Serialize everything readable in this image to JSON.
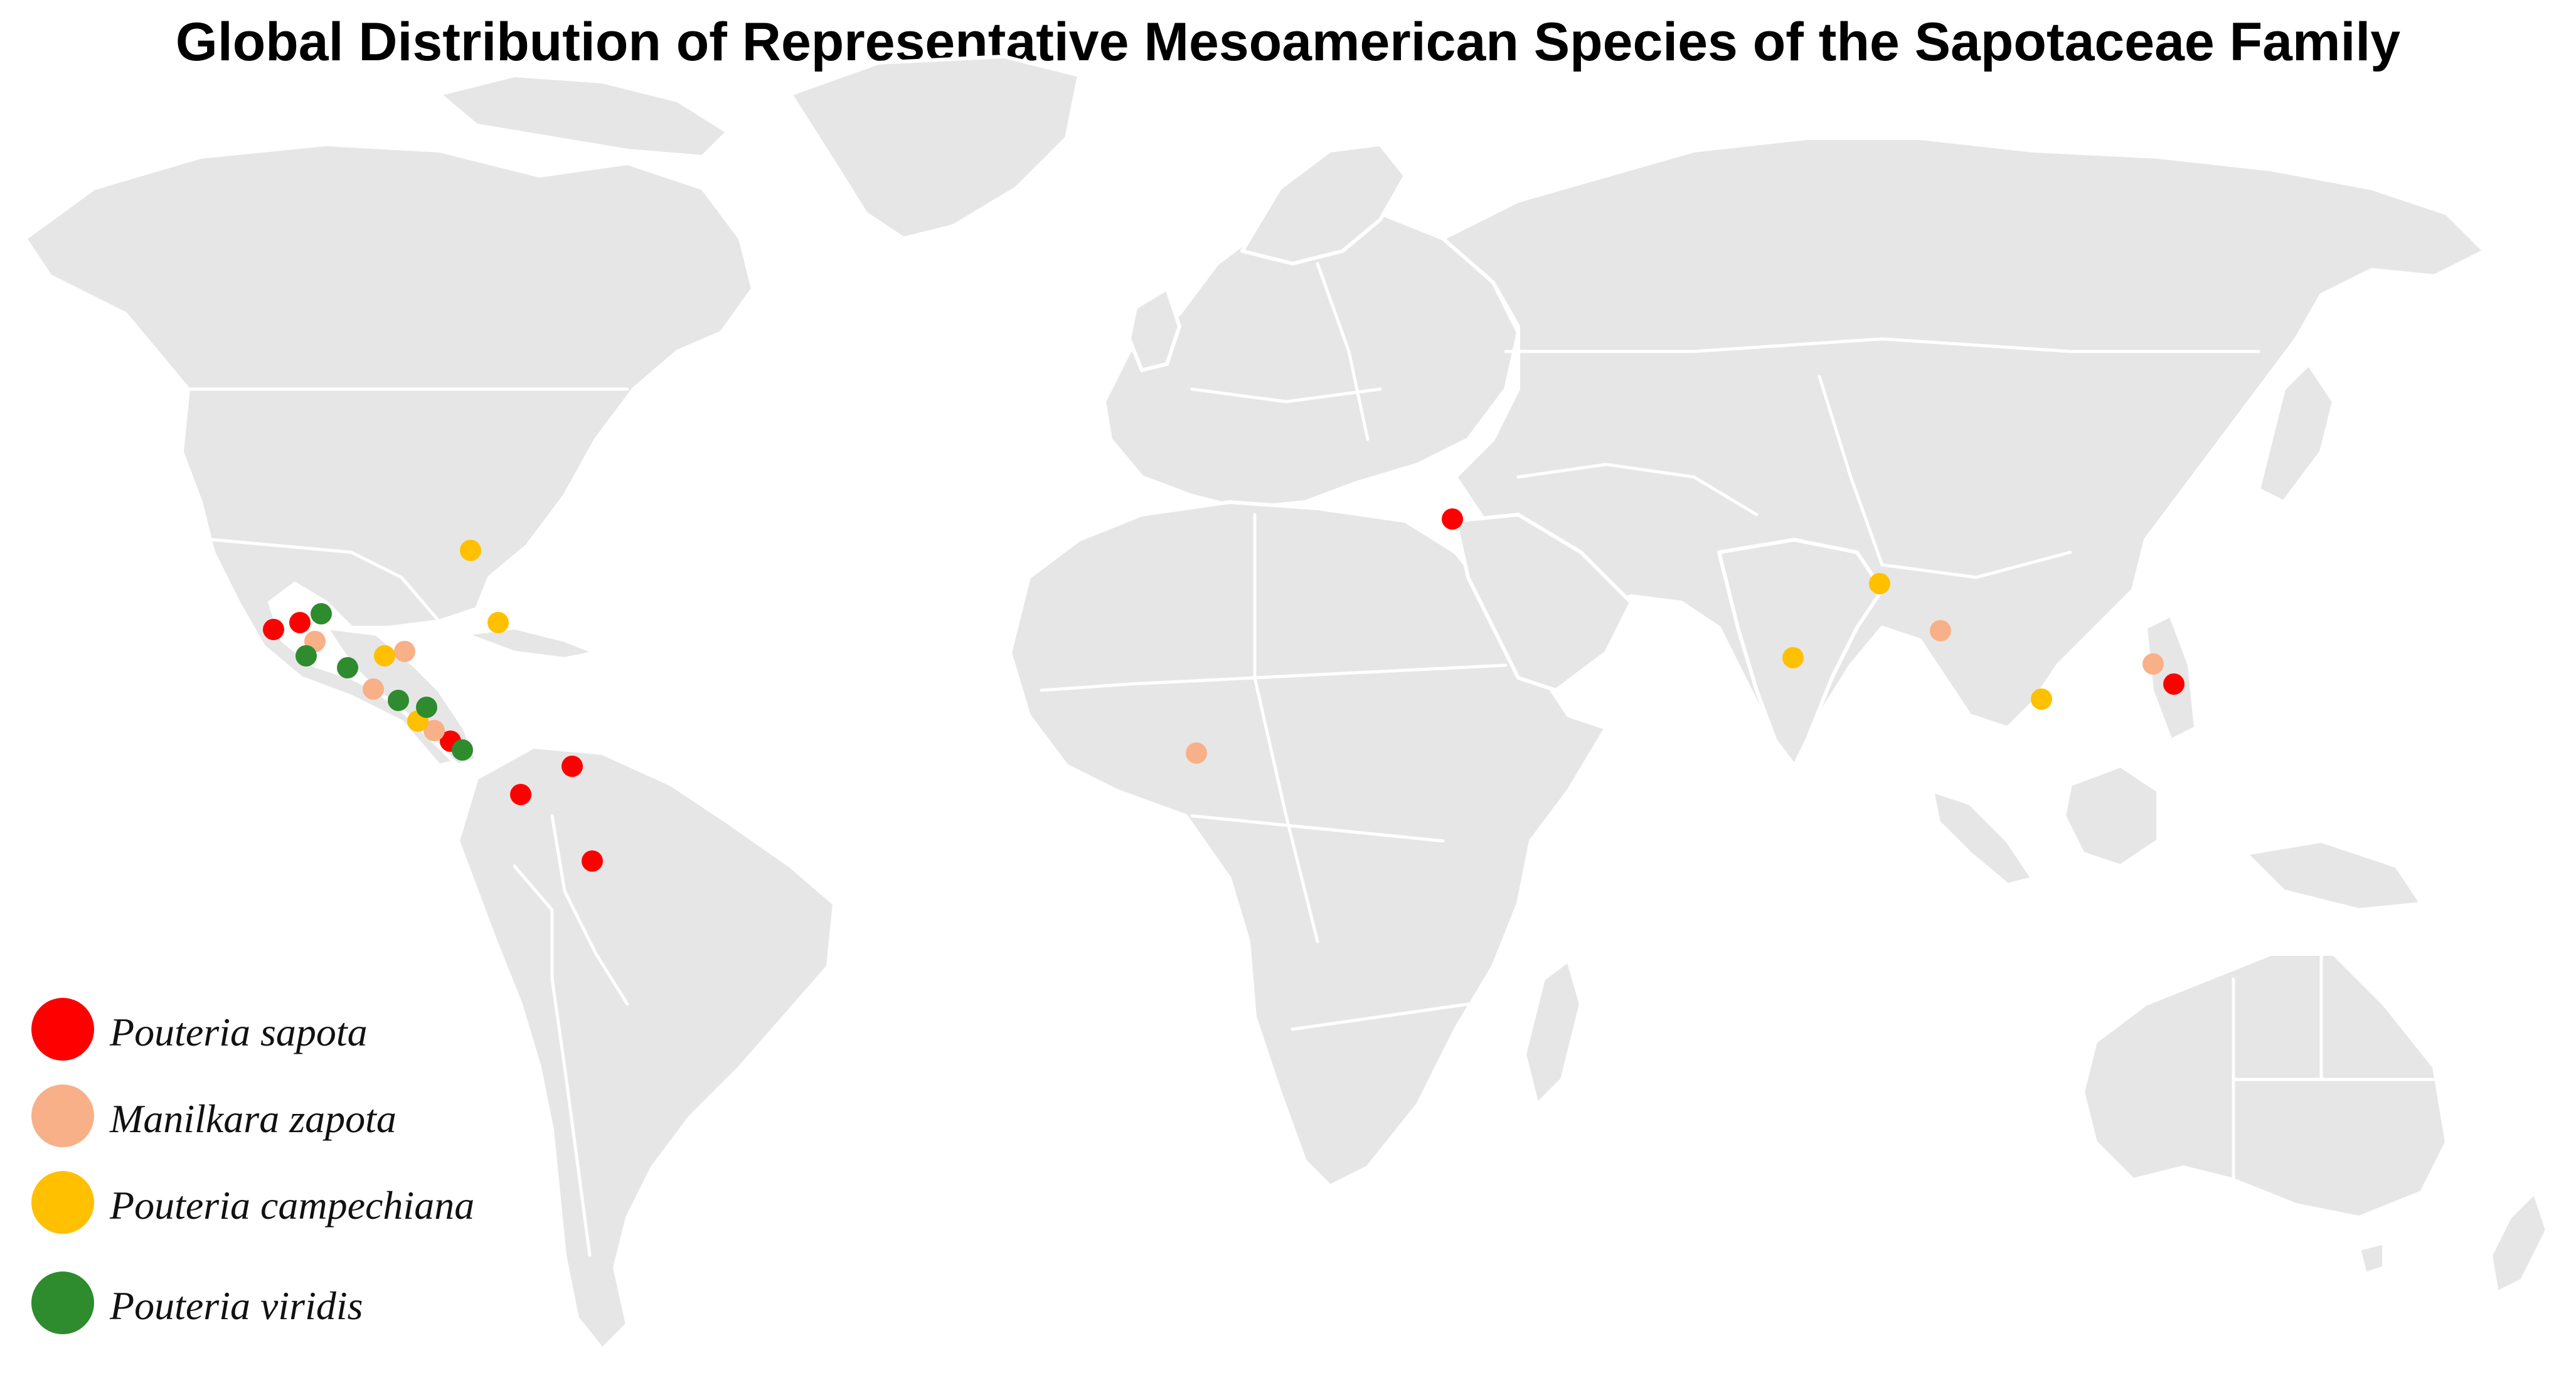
{
  "title": "Global Distribution of Representative Mesoamerican Species of the Sapotaceae Family",
  "colors": {
    "background": "#ffffff",
    "land": "#e6e6e6",
    "border": "#ffffff"
  },
  "species": [
    {
      "key": "sapota",
      "name": "Pouteria sapota",
      "color": "#ff0000"
    },
    {
      "key": "zapota",
      "name": "Manilkara zapota",
      "color": "#f8b088"
    },
    {
      "key": "campechiana",
      "name": "Pouteria campechiana",
      "color": "#ffc000"
    },
    {
      "key": "viridis",
      "name": "Pouteria viridis",
      "color": "#2e8b2e"
    }
  ],
  "occurrences": [
    {
      "species": "sapota",
      "place": "Jalisco, Mexico"
    },
    {
      "species": "sapota",
      "place": "Veracruz, Mexico"
    },
    {
      "species": "sapota",
      "place": "Costa Rica"
    },
    {
      "species": "sapota",
      "place": "Venezuela"
    },
    {
      "species": "sapota",
      "place": "Colombia"
    },
    {
      "species": "sapota",
      "place": "Amazonas, Brazil"
    },
    {
      "species": "sapota",
      "place": "Israel"
    },
    {
      "species": "sapota",
      "place": "Philippines"
    },
    {
      "species": "zapota",
      "place": "Mexico"
    },
    {
      "species": "zapota",
      "place": "Yucatan, Mexico"
    },
    {
      "species": "zapota",
      "place": "Guatemala"
    },
    {
      "species": "zapota",
      "place": "Nicaragua"
    },
    {
      "species": "zapota",
      "place": "Nigeria"
    },
    {
      "species": "zapota",
      "place": "Myanmar"
    },
    {
      "species": "zapota",
      "place": "Philippines"
    },
    {
      "species": "campechiana",
      "place": "Florida, USA"
    },
    {
      "species": "campechiana",
      "place": "Cuba"
    },
    {
      "species": "campechiana",
      "place": "Yucatan, Mexico"
    },
    {
      "species": "campechiana",
      "place": "Nicaragua"
    },
    {
      "species": "campechiana",
      "place": "India"
    },
    {
      "species": "campechiana",
      "place": "Bangladesh"
    },
    {
      "species": "campechiana",
      "place": "Vietnam"
    },
    {
      "species": "viridis",
      "place": "Veracruz, Mexico"
    },
    {
      "species": "viridis",
      "place": "Mexico"
    },
    {
      "species": "viridis",
      "place": "Chiapas, Mexico"
    },
    {
      "species": "viridis",
      "place": "Honduras"
    },
    {
      "species": "viridis",
      "place": "Honduras"
    },
    {
      "species": "viridis",
      "place": "Panama"
    }
  ]
}
